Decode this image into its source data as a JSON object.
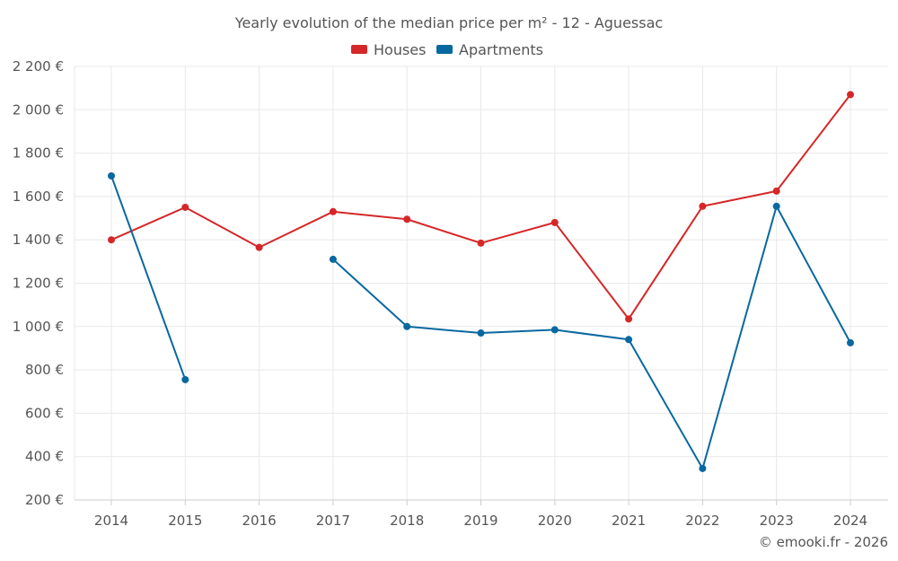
{
  "chart_data": {
    "type": "line",
    "title": "Yearly evolution of the median price per m² - 12 - Aguessac",
    "x": [
      "2014",
      "2015",
      "2016",
      "2017",
      "2018",
      "2019",
      "2020",
      "2021",
      "2022",
      "2023",
      "2024"
    ],
    "y_ticks": [
      "200 €",
      "400 €",
      "600 €",
      "800 €",
      "1 000 €",
      "1 200 €",
      "1 400 €",
      "1 600 €",
      "1 800 €",
      "2 000 €",
      "2 200 €"
    ],
    "ylim": [
      200,
      2200
    ],
    "grid": true,
    "legend_position": "top-center",
    "series": [
      {
        "name": "Houses",
        "color": "#d62728",
        "values": [
          1400,
          1550,
          1365,
          1530,
          1495,
          1385,
          1480,
          1035,
          1555,
          1625,
          2070
        ]
      },
      {
        "name": "Apartments",
        "color": "#0868a0",
        "values": [
          1695,
          755,
          null,
          1310,
          1000,
          970,
          985,
          940,
          345,
          1555,
          925
        ]
      }
    ]
  },
  "credit": "© emooki.fr - 2026"
}
